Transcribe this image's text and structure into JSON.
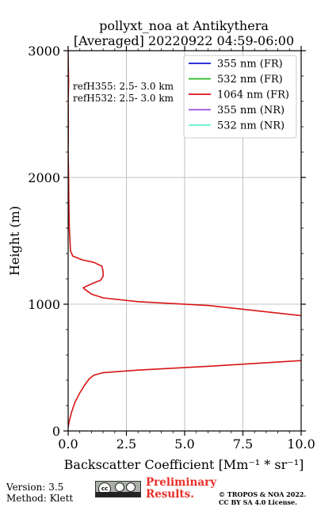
{
  "title": {
    "line1": "pollyxt_noa at Antikythera",
    "line2": "[Averaged] 20220922 04:59-06:00"
  },
  "annotation": {
    "line1": "refH355:  2.5- 3.0 km",
    "line2": "refH532:  2.5- 3.0 km"
  },
  "footer": {
    "version": "Version: 3.5",
    "method": "Method: Klett",
    "preliminary_line1": "Preliminary",
    "preliminary_line2": "Results.",
    "copyright_line1": "© TROPOS & NOA 2022.",
    "copyright_line2": "CC BY SA 4.0 License.",
    "cc_badge_text": "cc"
  },
  "chart_data": {
    "type": "line",
    "xlabel": "Backscatter Coefficient [Mm⁻¹ * sr⁻¹]",
    "ylabel": "Height (m)",
    "xlim": [
      0,
      10
    ],
    "ylim": [
      0,
      3000
    ],
    "xticks": [
      "0.0",
      "2.5",
      "5.0",
      "7.5",
      "10.0"
    ],
    "yticks": [
      "0",
      "1000",
      "2000",
      "3000"
    ],
    "grid": true,
    "legend_position": "top-right",
    "series": [
      {
        "name": "355 nm (FR)",
        "color": "#1414d2",
        "x": [],
        "y": []
      },
      {
        "name": "532 nm (FR)",
        "color": "#22bb22",
        "x": [],
        "y": []
      },
      {
        "name": "1064 nm (FR)",
        "color": "#d81414",
        "x": [
          0.0,
          0.05,
          0.15,
          0.3,
          0.5,
          0.7,
          0.9,
          1.1,
          1.5,
          3.0,
          6.0,
          10.0,
          10.5,
          6.0,
          3.0,
          1.5,
          1.0,
          0.7,
          0.65,
          1.0,
          1.4,
          1.5,
          1.5,
          1.45,
          1.1,
          0.6,
          0.2,
          0.1,
          0.05,
          0.03,
          0.02,
          0.0,
          0.01,
          0.0,
          0.02,
          0.01,
          0.0,
          0.0
        ],
        "y": [
          30,
          80,
          150,
          230,
          300,
          360,
          410,
          440,
          460,
          480,
          510,
          555,
          900,
          990,
          1020,
          1050,
          1080,
          1120,
          1130,
          1160,
          1190,
          1220,
          1260,
          1300,
          1330,
          1350,
          1380,
          1420,
          1600,
          1800,
          2000,
          2200,
          2400,
          2600,
          2750,
          2850,
          2950,
          3000
        ]
      },
      {
        "name": "355 nm (NR)",
        "color": "#9c4ddc",
        "x": [],
        "y": []
      },
      {
        "name": "532 nm (NR)",
        "color": "#5ef0d0",
        "x": [],
        "y": []
      }
    ]
  }
}
